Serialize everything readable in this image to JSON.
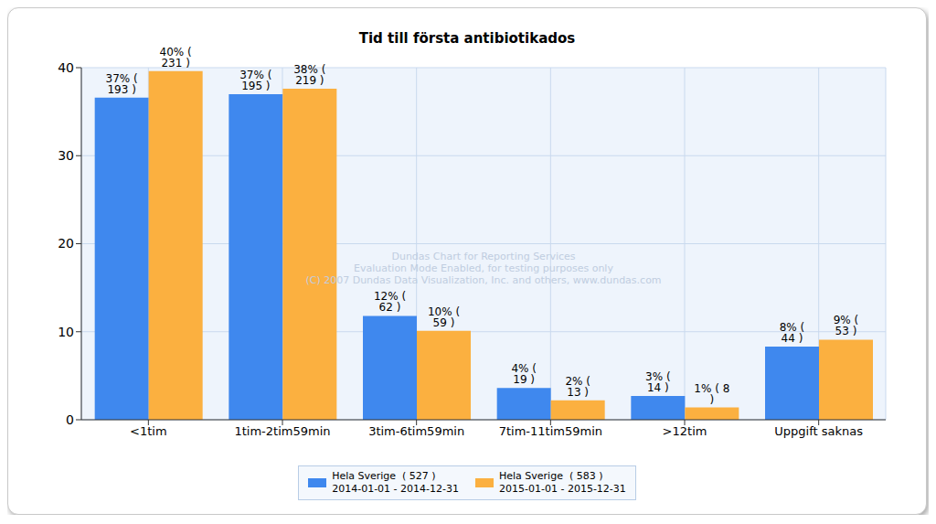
{
  "chart_data": {
    "type": "bar",
    "title": "Tid till första antibiotikados",
    "categories": [
      "<1tim",
      "1tim-2tim59min",
      "3tim-6tim59min",
      "7tim-11tim59min",
      ">12tim",
      "Uppgift saknas"
    ],
    "series": [
      {
        "name": "Hela Sverige  ( 527 )\n2014-01-01 - 2014-12-31",
        "color": "#3f88ee",
        "values": [
          36.6,
          37.0,
          11.8,
          3.6,
          2.7,
          8.3
        ],
        "value_labels": [
          "37% ( 193 )",
          "37% ( 195 )",
          "12% ( 62 )",
          "4% ( 19 )",
          "3% ( 14 )",
          "8% ( 44 )"
        ]
      },
      {
        "name": "Hela Sverige  ( 583 )\n2015-01-01 - 2015-12-31",
        "color": "#fbb040",
        "values": [
          39.6,
          37.6,
          10.1,
          2.2,
          1.4,
          9.1
        ],
        "value_labels": [
          "40% ( 231 )",
          "38% ( 219 )",
          "10% ( 59 )",
          "2% ( 13 )",
          "1% ( 8 )",
          "9% ( 53 )"
        ]
      }
    ],
    "ylim": [
      0,
      40
    ],
    "yticks": [
      0,
      10,
      20,
      30,
      40
    ],
    "grid": true,
    "legend": "bottom",
    "data_labels": true,
    "annotations": [
      "Dundas Chart for Reporting Services",
      "Evaluation Mode Enabled, for testing purposes only",
      "(C) 2007 Dundas Data Visualization, Inc. and others, www.dundas.com"
    ]
  }
}
